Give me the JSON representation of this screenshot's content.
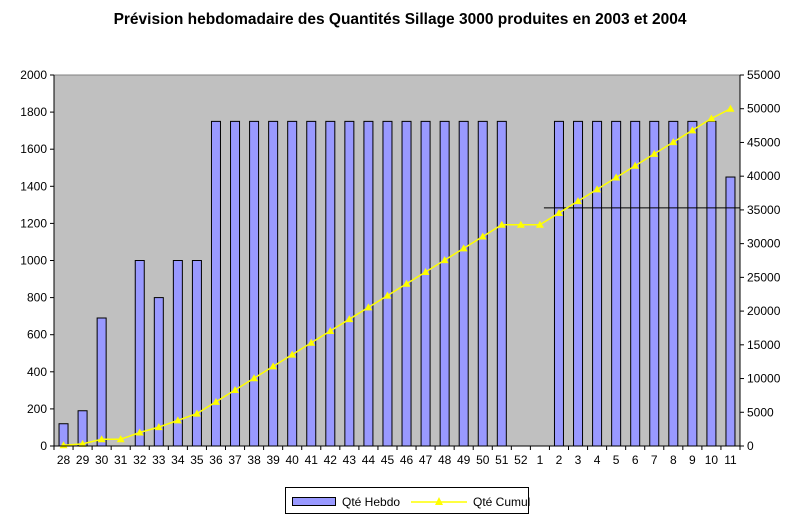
{
  "chart_data": {
    "type": "bar",
    "title": "Prévision hebdomadaire des Quantités Sillage 3000 produites en 2003 et 2004",
    "categories": [
      "28",
      "29",
      "30",
      "31",
      "32",
      "33",
      "34",
      "35",
      "36",
      "37",
      "38",
      "39",
      "40",
      "41",
      "42",
      "43",
      "44",
      "45",
      "46",
      "47",
      "48",
      "49",
      "50",
      "51",
      "52",
      "1",
      "2",
      "3",
      "4",
      "5",
      "6",
      "7",
      "8",
      "9",
      "10",
      "11"
    ],
    "series": [
      {
        "name": "Qté Hebdo",
        "axis": "left",
        "kind": "bar",
        "color": "#9999ff",
        "values": [
          120,
          190,
          690,
          0,
          1000,
          800,
          1000,
          1000,
          1750,
          1750,
          1750,
          1750,
          1750,
          1750,
          1750,
          1750,
          1750,
          1750,
          1750,
          1750,
          1750,
          1750,
          1750,
          1750,
          0,
          0,
          1750,
          1750,
          1750,
          1750,
          1750,
          1750,
          1750,
          1750,
          1750,
          1450
        ]
      },
      {
        "name": "Qté Cumul",
        "axis": "right",
        "kind": "line",
        "color": "#ffff00",
        "values": [
          120,
          310,
          1000,
          1000,
          2000,
          2800,
          3800,
          4800,
          6550,
          8300,
          10050,
          11800,
          13550,
          15300,
          17050,
          18800,
          20550,
          22300,
          24050,
          25800,
          27550,
          29300,
          31050,
          32800,
          32800,
          32800,
          34550,
          36300,
          38050,
          39800,
          41550,
          43300,
          45050,
          46800,
          48550,
          50000
        ]
      }
    ],
    "y_left": {
      "min": 0,
      "max": 2000,
      "ticks": [
        0,
        200,
        400,
        600,
        800,
        1000,
        1200,
        1400,
        1600,
        1800,
        2000
      ]
    },
    "y_right": {
      "min": 0,
      "max": 55000,
      "ticks": [
        0,
        5000,
        10000,
        15000,
        20000,
        25000,
        30000,
        35000,
        40000,
        45000,
        50000,
        55000
      ]
    },
    "reference_line": {
      "axis": "right",
      "value": 35300,
      "from_category": "1",
      "to_category": "11"
    },
    "plot_background": "#c0c0c0",
    "grid": false,
    "legend_position": "bottom"
  }
}
